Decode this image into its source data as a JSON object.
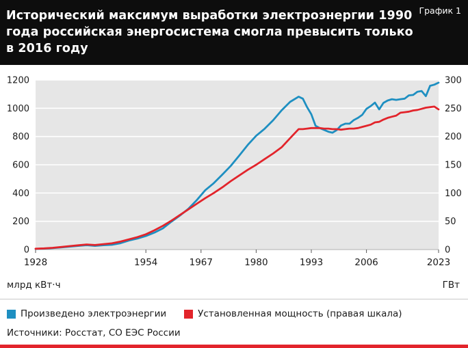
{
  "header": {
    "title": "Исторический максимум выработки электроэнергии 1990 года российская энергосистема смогла превысить только в 2016 году",
    "chart_label": "График 1"
  },
  "chart_data": {
    "type": "line",
    "x": [
      1928,
      1930,
      1932,
      1934,
      1936,
      1938,
      1940,
      1942,
      1944,
      1946,
      1948,
      1950,
      1952,
      1954,
      1956,
      1958,
      1960,
      1962,
      1964,
      1966,
      1968,
      1970,
      1972,
      1974,
      1976,
      1978,
      1980,
      1982,
      1984,
      1986,
      1988,
      1990,
      1991,
      1992,
      1993,
      1994,
      1995,
      1996,
      1997,
      1998,
      1999,
      2000,
      2001,
      2002,
      2003,
      2004,
      2005,
      2006,
      2007,
      2008,
      2009,
      2010,
      2011,
      2012,
      2013,
      2014,
      2015,
      2016,
      2017,
      2018,
      2019,
      2020,
      2021,
      2022,
      2023
    ],
    "series": [
      {
        "name": "Произведено электроэнергии",
        "axis": "left",
        "color": "#1e8fc1",
        "values": [
          5,
          7,
          10,
          15,
          21,
          26,
          31,
          26,
          31,
          34,
          45,
          64,
          78,
          96,
          120,
          150,
          197,
          240,
          288,
          350,
          420,
          470,
          530,
          592,
          665,
          740,
          805,
          855,
          915,
          985,
          1045,
          1082,
          1068,
          1008,
          957,
          876,
          860,
          847,
          834,
          827,
          846,
          878,
          891,
          891,
          916,
          932,
          953,
          996,
          1015,
          1040,
          992,
          1038,
          1055,
          1064,
          1059,
          1064,
          1068,
          1091,
          1094,
          1117,
          1122,
          1086,
          1159,
          1167,
          1181
        ]
      },
      {
        "name": "Установленная мощность (правая шкала)",
        "axis": "right",
        "color": "#e2242b",
        "values": [
          1.4,
          2,
          3,
          4.5,
          6,
          7.5,
          9,
          8,
          9.5,
          11,
          14,
          18,
          22,
          27,
          34,
          42,
          51,
          61,
          71,
          81,
          91,
          100,
          110,
          121,
          131,
          141,
          150,
          160,
          170,
          181,
          197,
          213,
          213,
          214,
          215,
          215,
          215,
          214,
          214,
          213,
          213,
          212,
          213,
          214,
          214,
          215,
          217,
          219,
          221,
          225,
          226,
          230,
          233,
          235,
          237,
          242,
          243,
          244,
          246,
          247,
          249,
          251,
          252,
          253,
          248
        ]
      }
    ],
    "left_axis": {
      "label": "млрд кВт·ч",
      "min": 0,
      "max": 1200,
      "ticks": [
        0,
        200,
        400,
        600,
        800,
        1000,
        1200
      ]
    },
    "right_axis": {
      "label": "ГВт",
      "min": 0,
      "max": 300,
      "ticks": [
        0,
        50,
        100,
        150,
        200,
        250,
        300
      ]
    },
    "x_ticks": [
      1928,
      1954,
      1967,
      1980,
      1993,
      2006,
      2023
    ],
    "grid": true,
    "legend_position": "bottom",
    "title": "Исторический максимум выработки электроэнергии 1990 года российская энергосистема смогла превысить только в 2016 году"
  },
  "footer": {
    "sources": "Источники: Росстат, СО ЕЭС России"
  },
  "style": {
    "plot_background": "#e6e6e6",
    "gridline_color": "#ffffff",
    "header_background": "#0d0d0d",
    "accent_red": "#e2242b",
    "accent_blue": "#1e8fc1"
  }
}
